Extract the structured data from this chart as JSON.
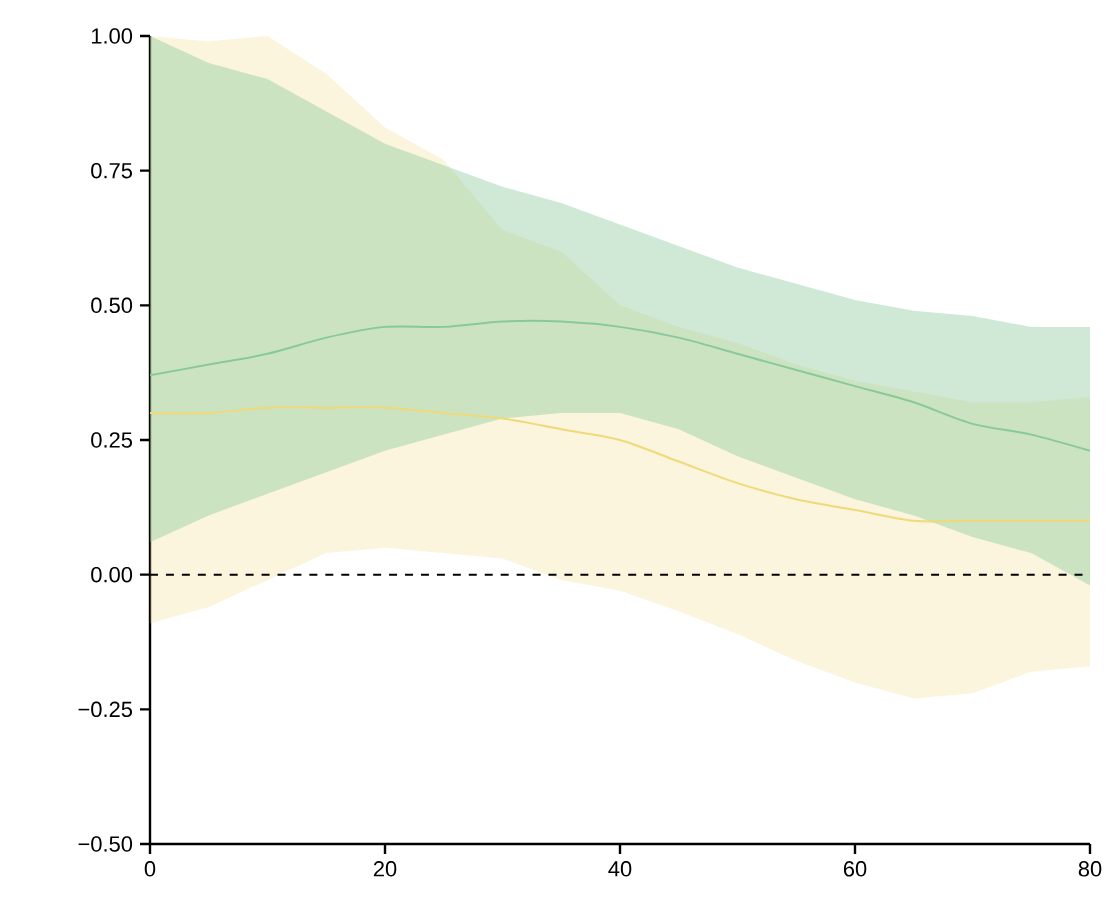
{
  "chart_data": {
    "type": "line",
    "x": [
      0,
      5,
      10,
      15,
      20,
      25,
      30,
      35,
      40,
      45,
      50,
      55,
      60,
      65,
      70,
      75,
      80
    ],
    "series": [
      {
        "color": "#f0d978",
        "values": [
          0.3,
          0.3,
          0.31,
          0.31,
          0.31,
          0.3,
          0.29,
          0.27,
          0.25,
          0.21,
          0.17,
          0.14,
          0.12,
          0.1,
          0.1,
          0.1,
          0.1
        ],
        "lower": [
          -0.09,
          -0.06,
          -0.01,
          0.04,
          0.05,
          0.04,
          0.03,
          -0.01,
          -0.03,
          -0.068,
          -0.11,
          -0.16,
          -0.2,
          -0.23,
          -0.22,
          -0.18,
          -0.17
        ],
        "upper": [
          1.0,
          0.99,
          1.0,
          0.93,
          0.83,
          0.77,
          0.64,
          0.6,
          0.5,
          0.46,
          0.43,
          0.39,
          0.36,
          0.34,
          0.32,
          0.32,
          0.33
        ]
      },
      {
        "color": "#88c999",
        "values": [
          0.37,
          0.39,
          0.41,
          0.44,
          0.46,
          0.46,
          0.47,
          0.47,
          0.46,
          0.44,
          0.41,
          0.38,
          0.35,
          0.32,
          0.28,
          0.26,
          0.23
        ],
        "lower": [
          0.06,
          0.11,
          0.15,
          0.19,
          0.23,
          0.26,
          0.29,
          0.3,
          0.3,
          0.27,
          0.22,
          0.18,
          0.14,
          0.11,
          0.07,
          0.04,
          -0.02
        ],
        "upper": [
          1.0,
          0.95,
          0.92,
          0.86,
          0.8,
          0.76,
          0.72,
          0.69,
          0.65,
          0.61,
          0.57,
          0.54,
          0.51,
          0.49,
          0.48,
          0.46,
          0.46
        ]
      }
    ],
    "xlim": [
      0,
      80
    ],
    "ylim": [
      -0.5,
      1.0
    ],
    "xticks": [
      0,
      20,
      40,
      60,
      80
    ],
    "yticks": [
      {
        "value": -0.5,
        "label": "−0.50"
      },
      {
        "value": -0.25,
        "label": "−0.25"
      },
      {
        "value": 0,
        "label": "0.00"
      },
      {
        "value": 0.25,
        "label": "0.25"
      },
      {
        "value": 0.5,
        "label": "0.50"
      },
      {
        "value": 0.75,
        "label": "0.75"
      },
      {
        "value": 1.0,
        "label": "1.00"
      }
    ],
    "ref_lines": [
      {
        "axis": "y",
        "value": 0,
        "color": "#000000",
        "line_style": "dashed"
      }
    ]
  }
}
